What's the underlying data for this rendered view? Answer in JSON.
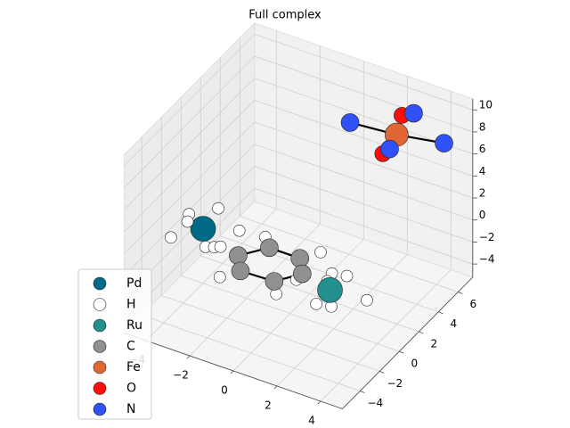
{
  "chart_data": {
    "type": "scatter3d",
    "title": "Full complex",
    "xlim": [
      -5,
      5
    ],
    "ylim": [
      -5.8,
      7.5
    ],
    "zlim": [
      -5.2,
      11
    ],
    "xticks": [
      {
        "value": -4,
        "label": "−4"
      },
      {
        "value": -2,
        "label": "−2"
      },
      0,
      2,
      4
    ],
    "yticks": [
      {
        "value": -4,
        "label": "−4"
      },
      {
        "value": -2,
        "label": "−2"
      },
      0,
      2,
      4,
      6
    ],
    "zticks": [
      {
        "value": -4,
        "label": "−4"
      },
      {
        "value": -2,
        "label": "−2"
      },
      0,
      2,
      4,
      6,
      8,
      10
    ],
    "grid": true,
    "legend": "lower left",
    "series": [
      {
        "name": "Pd",
        "color": "#006985",
        "size": 14,
        "x": [
          -3.9
        ],
        "y": [
          -0.2
        ],
        "z": [
          0
        ]
      },
      {
        "name": "H",
        "color": "#ffffff",
        "size": 6.5,
        "x": [
          -4.5,
          -4.3,
          -3.7,
          -4.7,
          -3.2,
          -2.9,
          -2.7,
          -2.6,
          -1.5,
          0.9,
          -1.7,
          0.8,
          1.0,
          2.0,
          2.6,
          2.1,
          4.1,
          2.5,
          3.1
        ],
        "y": [
          -0.3,
          -0.9,
          0.9,
          -1.7,
          -1.5,
          -1.3,
          -1.1,
          0.6,
          0.8,
          1.1,
          -3.4,
          -3.2,
          -1.6,
          -0.2,
          0.0,
          -0.9,
          -1.3,
          -2.9,
          -2.7
        ],
        "z": [
          1,
          1,
          1,
          0,
          0,
          0,
          0,
          0,
          0,
          0,
          0,
          0,
          0,
          0,
          0,
          0,
          0,
          0,
          0
        ]
      },
      {
        "name": "Ru",
        "color": "#248f8f",
        "size": 14,
        "x": [
          2.5
        ],
        "y": [
          -1.5
        ],
        "z": [
          0
        ]
      },
      {
        "name": "C",
        "color": "#909090",
        "size": 10,
        "x": [
          -1.8,
          -1.0,
          0.4,
          1.0,
          0.3,
          -1.2
        ],
        "y": [
          -1.3,
          0.1,
          0.1,
          -1.0,
          -2.3,
          -2.4
        ],
        "z": [
          0,
          0,
          0,
          0,
          0,
          0
        ]
      },
      {
        "name": "Fe",
        "color": "#e06633",
        "size": 13,
        "x": [
          2.5
        ],
        "y": [
          5.3
        ],
        "z": [
          8
        ]
      },
      {
        "name": "O",
        "color": "#ff0d0d",
        "size": 9,
        "x": [
          2.7,
          2.0
        ],
        "y": [
          5.4,
          5.0
        ],
        "z": [
          9.8,
          6.2
        ]
      },
      {
        "name": "N",
        "color": "#3050f8",
        "size": 10,
        "x": [
          0.5,
          4.4,
          3.1,
          2.0
        ],
        "y": [
          5.0,
          5.9,
          5.7,
          5.7
        ],
        "z": [
          8,
          8,
          10,
          6
        ]
      }
    ],
    "bonds": [
      [
        [
          3,
          0
        ],
        [
          3,
          1
        ]
      ],
      [
        [
          3,
          1
        ],
        [
          3,
          2
        ]
      ],
      [
        [
          3,
          2
        ],
        [
          3,
          3
        ]
      ],
      [
        [
          3,
          3
        ],
        [
          3,
          4
        ]
      ],
      [
        [
          3,
          4
        ],
        [
          3,
          5
        ]
      ],
      [
        [
          3,
          5
        ],
        [
          3,
          0
        ]
      ],
      [
        [
          4,
          0
        ],
        [
          6,
          0
        ]
      ],
      [
        [
          4,
          0
        ],
        [
          6,
          1
        ]
      ]
    ]
  }
}
